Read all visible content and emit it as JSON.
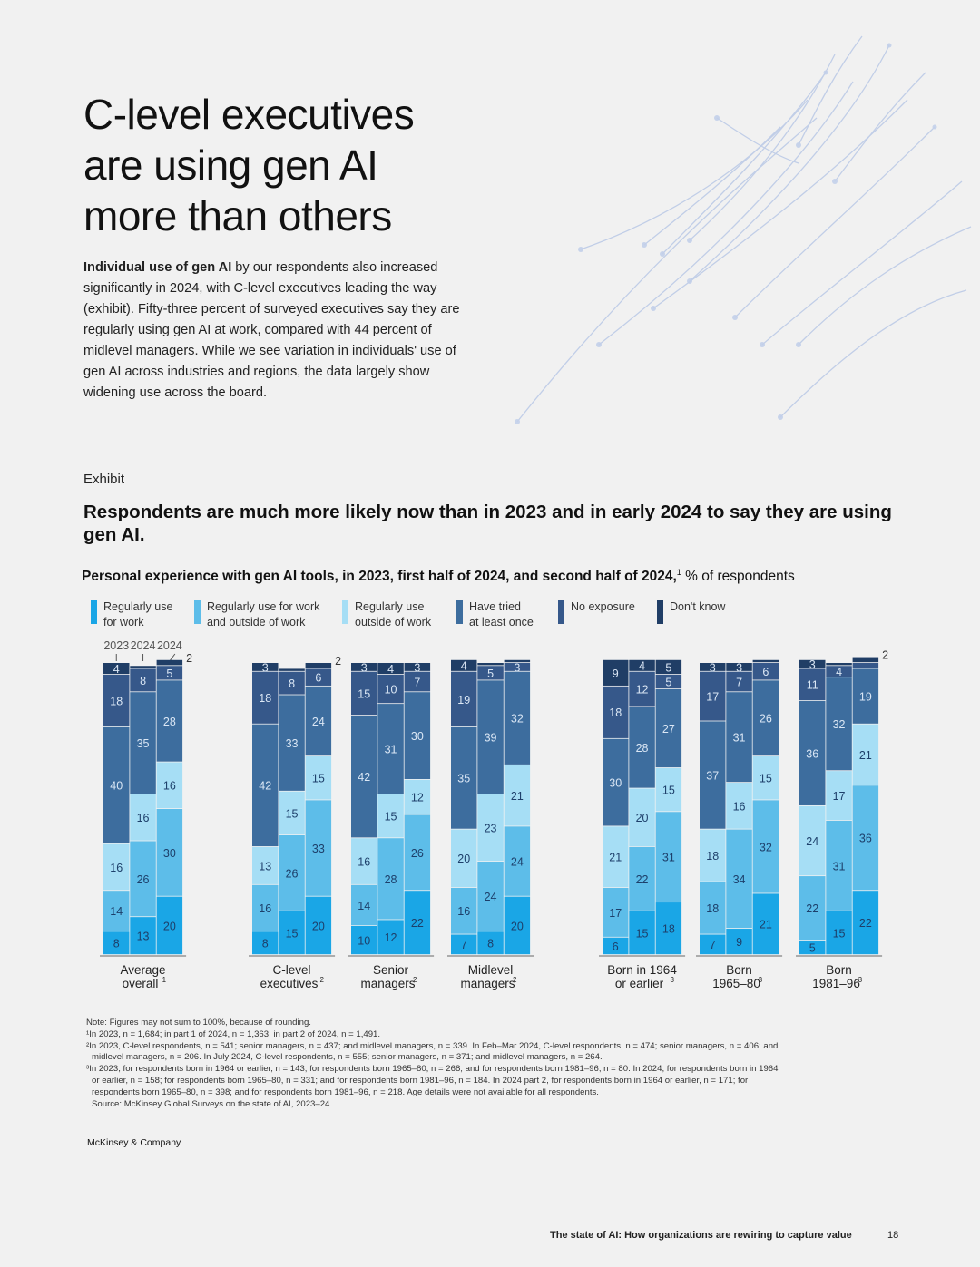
{
  "page": {
    "title_lines": [
      "C-level executives",
      "are using gen AI",
      "more than others"
    ],
    "intro_bold": "Individual use of gen AI",
    "intro_rest": " by our respondents also increased significantly in 2024, with C-level executives leading the way (exhibit). Fifty-three percent of surveyed executives say they are regularly using gen AI at work, compared with 44 percent of midlevel managers. While we see variation in individuals' use of gen AI across industries and regions, the data largely show widening use across the board.",
    "exhibit_label": "Exhibit",
    "exhibit_title": "Respondents are much more likely now than in 2023 and in early 2024 to say they are using gen AI.",
    "subtitle_bold": "Personal experience with gen AI tools, in 2023, first half of 2024, and second half of 2024,",
    "subtitle_sup": "1",
    "subtitle_rest": " % of respondents",
    "brand": "McKinsey & Company",
    "footer_title": "The state of AI: How organizations are rewiring to capture value",
    "page_number": "18"
  },
  "notes": [
    "Note: Figures may not sum to 100%, because of rounding.",
    "¹In 2023, n = 1,684; in part 1 of 2024, n = 1,363; in part 2 of 2024, n = 1,491.",
    "²In 2023, C-level respondents, n = 541; senior managers, n = 437; and midlevel managers, n = 339. In Feb–Mar 2024, C-level respondents, n = 474; senior managers, n = 406; and",
    "midlevel managers, n = 206. In July 2024, C-level respondents, n = 555; senior managers, n = 371; and midlevel managers, n = 264.",
    "³In 2023, for respondents born in 1964 or earlier, n = 143; for respondents born 1965–80, n = 268; and for respondents born 1981–96, n = 80. In 2024, for respondents born in 1964",
    "or earlier, n = 158; for respondents born 1965–80, n = 331; and for respondents born 1981–96, n = 184. In 2024 part 2, for respondents born in 1964 or earlier, n = 171; for",
    "respondents born 1965–80, n = 398; and for respondents born 1981–96, n = 218. Age details were not available for all respondents.",
    "Source: McKinsey Global Surveys on the state of AI, 2023–24"
  ],
  "colors": {
    "regularly_work": "#1aa6e6",
    "regularly_both": "#5dbde9",
    "regularly_outside": "#a6def5",
    "have_tried": "#3d6d9e",
    "no_exposure": "#36588a",
    "dont_know": "#203e66"
  },
  "chart_data": {
    "type": "bar",
    "stacked": true,
    "percent_scale": [
      0,
      100
    ],
    "legend": [
      {
        "key": "regularly_work",
        "line1": "Regularly use",
        "line2": "for work"
      },
      {
        "key": "regularly_both",
        "line1": "Regularly use for work",
        "line2": "and outside of work"
      },
      {
        "key": "regularly_outside",
        "line1": "Regularly use",
        "line2": "outside of work"
      },
      {
        "key": "have_tried",
        "line1": "Have tried",
        "line2": "at least once"
      },
      {
        "key": "no_exposure",
        "line1": "No exposure",
        "line2": ""
      },
      {
        "key": "dont_know",
        "line1": "Don't know",
        "line2": ""
      }
    ],
    "year_labels": [
      "2023",
      "2024",
      "2024"
    ],
    "segment_order": [
      "regularly_work",
      "regularly_both",
      "regularly_outside",
      "have_tried",
      "no_exposure",
      "dont_know"
    ],
    "groups": [
      {
        "label_lines": [
          "Average",
          "overall"
        ],
        "label_sup": "1",
        "bars": [
          {
            "year": "2023",
            "values": [
              8,
              14,
              16,
              40,
              18,
              4
            ]
          },
          {
            "year": "2024",
            "values": [
              13,
              26,
              16,
              35,
              8,
              1
            ]
          },
          {
            "year": "2024",
            "values": [
              20,
              30,
              16,
              28,
              5,
              2
            ]
          }
        ]
      },
      {
        "label_lines": [
          "C-level",
          "executives"
        ],
        "label_sup": "2",
        "bars": [
          {
            "year": "2023",
            "values": [
              8,
              16,
              13,
              42,
              18,
              3
            ]
          },
          {
            "year": "2024",
            "values": [
              15,
              26,
              15,
              33,
              8,
              1
            ]
          },
          {
            "year": "2024",
            "values": [
              20,
              33,
              15,
              24,
              6,
              2
            ]
          }
        ]
      },
      {
        "label_lines": [
          "Senior",
          "managers"
        ],
        "label_sup": "2",
        "bars": [
          {
            "year": "2023",
            "values": [
              10,
              14,
              16,
              42,
              15,
              3
            ]
          },
          {
            "year": "2024",
            "values": [
              12,
              28,
              15,
              31,
              10,
              4
            ]
          },
          {
            "year": "2024",
            "values": [
              22,
              26,
              12,
              30,
              7,
              3
            ]
          }
        ]
      },
      {
        "label_lines": [
          "Midlevel",
          "managers"
        ],
        "label_sup": "2",
        "bars": [
          {
            "year": "2023",
            "values": [
              7,
              16,
              20,
              35,
              19,
              4
            ]
          },
          {
            "year": "2024",
            "values": [
              8,
              24,
              23,
              39,
              5,
              1
            ]
          },
          {
            "year": "2024",
            "values": [
              20,
              24,
              21,
              32,
              3,
              1
            ]
          }
        ]
      },
      {
        "label_lines": [
          "Born in 1964",
          "or earlier"
        ],
        "label_sup": "3",
        "bars": [
          {
            "year": "2023",
            "values": [
              6,
              17,
              21,
              30,
              18,
              9
            ]
          },
          {
            "year": "2024",
            "values": [
              15,
              22,
              20,
              28,
              12,
              4
            ]
          },
          {
            "year": "2024",
            "values": [
              18,
              31,
              15,
              27,
              5,
              5
            ]
          }
        ]
      },
      {
        "label_lines": [
          "Born",
          "1965–80"
        ],
        "label_sup": "3",
        "bars": [
          {
            "year": "2023",
            "values": [
              7,
              18,
              18,
              37,
              17,
              3
            ]
          },
          {
            "year": "2024",
            "values": [
              9,
              34,
              16,
              31,
              7,
              3
            ]
          },
          {
            "year": "2024",
            "values": [
              21,
              32,
              15,
              26,
              6,
              1
            ]
          }
        ]
      },
      {
        "label_lines": [
          "Born",
          "1981–96"
        ],
        "label_sup": "3",
        "bars": [
          {
            "year": "2023",
            "values": [
              5,
              22,
              24,
              36,
              11,
              3
            ]
          },
          {
            "year": "2024",
            "values": [
              15,
              31,
              17,
              32,
              4,
              1
            ]
          },
          {
            "year": "2024",
            "values": [
              22,
              36,
              21,
              19,
              2,
              2
            ]
          }
        ]
      }
    ]
  }
}
